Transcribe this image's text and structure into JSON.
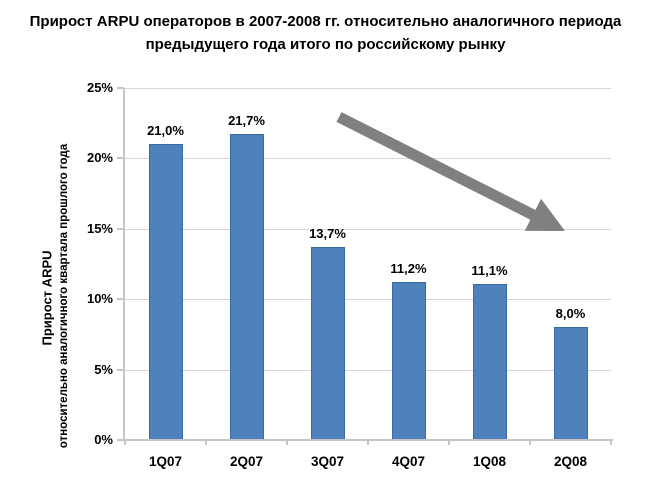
{
  "title": {
    "line1": "Прирост ARPU операторов в 2007-2008 гг. относительно аналогичного периода",
    "line2": "предыдущего года итого по российскому рынку"
  },
  "y_axis": {
    "title_line1": "Прирост ARPU",
    "title_line2": "относительно аналогичного квартала прошлого года"
  },
  "chart_data": {
    "type": "bar",
    "title": "Прирост ARPU операторов в 2007-2008 гг. относительно аналогичного периода предыдущего года итого по российскому рынку",
    "categories": [
      "1Q07",
      "2Q07",
      "3Q07",
      "4Q07",
      "1Q08",
      "2Q08"
    ],
    "values": [
      21.0,
      21.7,
      13.7,
      11.2,
      11.1,
      8.0
    ],
    "value_labels": [
      "21,0%",
      "21,7%",
      "13,7%",
      "11,2%",
      "11,1%",
      "8,0%"
    ],
    "xlabel": "",
    "ylabel": "Прирост ARPU относительно аналогичного квартала прошлого года",
    "ylim": [
      0,
      25
    ],
    "ytick_step": 5,
    "ytick_labels": [
      "0%",
      "5%",
      "10%",
      "15%",
      "20%",
      "25%"
    ],
    "grid": true,
    "legend": false,
    "annotations": [
      {
        "type": "arrow",
        "meaning": "downward trend across quarters",
        "color": "#808080"
      }
    ]
  },
  "colors": {
    "background": "#FFFFFF",
    "bar_fill": "#4F81BD",
    "bar_border": "#3A6BA5",
    "gridline": "#D6D6D6",
    "axis_line": "#C6C6C6",
    "text": "#000000",
    "arrow": "#808080"
  }
}
